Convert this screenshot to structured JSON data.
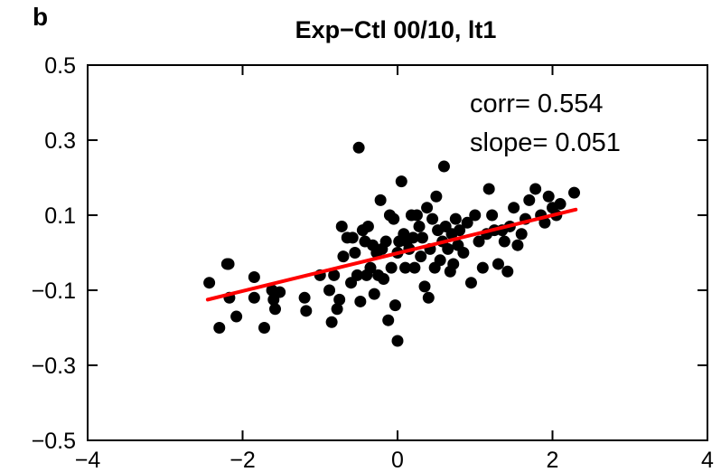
{
  "chart_data": {
    "type": "scatter",
    "panel_label": "b",
    "title": "Exp−Ctl 00/10, lt1",
    "xlabel": "",
    "ylabel": "",
    "xlim": [
      -4,
      4
    ],
    "ylim": [
      -0.5,
      0.5
    ],
    "xticks": [
      -4,
      -2,
      0,
      2,
      4
    ],
    "xtick_labels": [
      "−4",
      "−2",
      "0",
      "2",
      "4"
    ],
    "yticks": [
      -0.5,
      -0.3,
      -0.1,
      0.1,
      0.3,
      0.5
    ],
    "ytick_labels": [
      "−0.5",
      "−0.3",
      "−0.1",
      "0.1",
      "0.3",
      "0.5"
    ],
    "grid": false,
    "annotations": [
      "corr= 0.554",
      "slope= 0.051"
    ],
    "colors": {
      "points": "#000000",
      "fit_line": "#ff0000"
    },
    "regression_line": {
      "x": [
        -2.45,
        2.3
      ],
      "y": [
        -0.125,
        0.115
      ]
    },
    "points": [
      {
        "x": -2.43,
        "y": -0.08
      },
      {
        "x": -2.2,
        "y": -0.03
      },
      {
        "x": -2.18,
        "y": -0.03
      },
      {
        "x": -2.17,
        "y": -0.12
      },
      {
        "x": -2.08,
        "y": -0.17
      },
      {
        "x": -2.3,
        "y": -0.2
      },
      {
        "x": -1.85,
        "y": -0.065
      },
      {
        "x": -1.85,
        "y": -0.12
      },
      {
        "x": -1.72,
        "y": -0.2
      },
      {
        "x": -1.62,
        "y": -0.1
      },
      {
        "x": -1.6,
        "y": -0.125
      },
      {
        "x": -1.58,
        "y": -0.15
      },
      {
        "x": -1.52,
        "y": -0.105
      },
      {
        "x": -1.2,
        "y": -0.12
      },
      {
        "x": -1.18,
        "y": -0.155
      },
      {
        "x": -1.0,
        "y": -0.06
      },
      {
        "x": -0.88,
        "y": -0.1
      },
      {
        "x": -0.85,
        "y": -0.185
      },
      {
        "x": -0.82,
        "y": -0.06
      },
      {
        "x": -0.78,
        "y": -0.15
      },
      {
        "x": -0.75,
        "y": -0.125
      },
      {
        "x": -0.72,
        "y": 0.07
      },
      {
        "x": -0.7,
        "y": -0.01
      },
      {
        "x": -0.65,
        "y": 0.04
      },
      {
        "x": -0.6,
        "y": -0.08
      },
      {
        "x": -0.58,
        "y": 0.04
      },
      {
        "x": -0.55,
        "y": 0.0
      },
      {
        "x": -0.52,
        "y": -0.06
      },
      {
        "x": -0.5,
        "y": 0.28
      },
      {
        "x": -0.48,
        "y": -0.13
      },
      {
        "x": -0.45,
        "y": 0.06
      },
      {
        "x": -0.42,
        "y": 0.03
      },
      {
        "x": -0.4,
        "y": -0.06
      },
      {
        "x": -0.38,
        "y": 0.07
      },
      {
        "x": -0.35,
        "y": -0.04
      },
      {
        "x": -0.32,
        "y": 0.02
      },
      {
        "x": -0.3,
        "y": -0.11
      },
      {
        "x": -0.27,
        "y": 0.0
      },
      {
        "x": -0.25,
        "y": -0.06
      },
      {
        "x": -0.22,
        "y": 0.14
      },
      {
        "x": -0.2,
        "y": 0.01
      },
      {
        "x": -0.18,
        "y": -0.07
      },
      {
        "x": -0.15,
        "y": 0.03
      },
      {
        "x": -0.12,
        "y": -0.18
      },
      {
        "x": -0.1,
        "y": 0.1
      },
      {
        "x": -0.08,
        "y": -0.04
      },
      {
        "x": -0.05,
        "y": 0.09
      },
      {
        "x": -0.03,
        "y": -0.14
      },
      {
        "x": 0.0,
        "y": 0.0
      },
      {
        "x": 0.0,
        "y": -0.235
      },
      {
        "x": 0.02,
        "y": 0.03
      },
      {
        "x": 0.05,
        "y": 0.19
      },
      {
        "x": 0.08,
        "y": 0.05
      },
      {
        "x": 0.1,
        "y": -0.04
      },
      {
        "x": 0.12,
        "y": 0.03
      },
      {
        "x": 0.15,
        "y": 0.01
      },
      {
        "x": 0.18,
        "y": 0.1
      },
      {
        "x": 0.2,
        "y": 0.04
      },
      {
        "x": 0.22,
        "y": -0.04
      },
      {
        "x": 0.25,
        "y": 0.1
      },
      {
        "x": 0.28,
        "y": 0.07
      },
      {
        "x": 0.3,
        "y": -0.01
      },
      {
        "x": 0.32,
        "y": 0.04
      },
      {
        "x": 0.35,
        "y": -0.09
      },
      {
        "x": 0.38,
        "y": 0.12
      },
      {
        "x": 0.4,
        "y": -0.12
      },
      {
        "x": 0.42,
        "y": 0.01
      },
      {
        "x": 0.45,
        "y": 0.09
      },
      {
        "x": 0.48,
        "y": -0.04
      },
      {
        "x": 0.5,
        "y": 0.15
      },
      {
        "x": 0.52,
        "y": 0.06
      },
      {
        "x": 0.55,
        "y": -0.02
      },
      {
        "x": 0.58,
        "y": 0.03
      },
      {
        "x": 0.6,
        "y": 0.23
      },
      {
        "x": 0.62,
        "y": 0.07
      },
      {
        "x": 0.65,
        "y": 0.01
      },
      {
        "x": 0.68,
        "y": -0.05
      },
      {
        "x": 0.7,
        "y": 0.05
      },
      {
        "x": 0.72,
        "y": -0.03
      },
      {
        "x": 0.75,
        "y": 0.09
      },
      {
        "x": 0.78,
        "y": 0.02
      },
      {
        "x": 0.8,
        "y": 0.06
      },
      {
        "x": 0.85,
        "y": 0.0
      },
      {
        "x": 0.9,
        "y": 0.08
      },
      {
        "x": 0.95,
        "y": -0.08
      },
      {
        "x": 1.0,
        "y": 0.1
      },
      {
        "x": 1.05,
        "y": 0.03
      },
      {
        "x": 1.1,
        "y": -0.04
      },
      {
        "x": 1.15,
        "y": 0.05
      },
      {
        "x": 1.18,
        "y": 0.17
      },
      {
        "x": 1.22,
        "y": 0.1
      },
      {
        "x": 1.25,
        "y": 0.06
      },
      {
        "x": 1.3,
        "y": -0.03
      },
      {
        "x": 1.35,
        "y": 0.06
      },
      {
        "x": 1.38,
        "y": 0.03
      },
      {
        "x": 1.42,
        "y": -0.05
      },
      {
        "x": 1.45,
        "y": 0.07
      },
      {
        "x": 1.5,
        "y": 0.12
      },
      {
        "x": 1.55,
        "y": 0.02
      },
      {
        "x": 1.6,
        "y": 0.05
      },
      {
        "x": 1.65,
        "y": 0.09
      },
      {
        "x": 1.7,
        "y": 0.14
      },
      {
        "x": 1.78,
        "y": 0.17
      },
      {
        "x": 1.85,
        "y": 0.1
      },
      {
        "x": 1.9,
        "y": 0.08
      },
      {
        "x": 1.95,
        "y": 0.15
      },
      {
        "x": 2.0,
        "y": 0.12
      },
      {
        "x": 2.05,
        "y": 0.1
      },
      {
        "x": 2.1,
        "y": 0.13
      },
      {
        "x": 2.28,
        "y": 0.16
      }
    ]
  }
}
